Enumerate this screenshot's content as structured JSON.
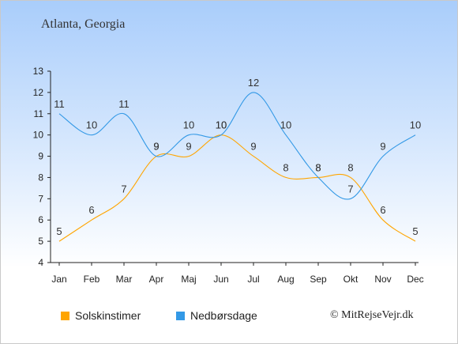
{
  "title": "Atlanta, Georgia",
  "legend": [
    {
      "label": "Solskinstimer",
      "color": "#ffa500"
    },
    {
      "label": "Nedbørsdage",
      "color": "#3399e6"
    }
  ],
  "credit": "© MitRejseVejr.dk",
  "chart_data": {
    "type": "line",
    "title": "Atlanta, Georgia",
    "xlabel": "",
    "ylabel": "",
    "categories": [
      "Jan",
      "Feb",
      "Mar",
      "Apr",
      "Maj",
      "Jun",
      "Jul",
      "Aug",
      "Sep",
      "Okt",
      "Nov",
      "Dec"
    ],
    "ylim": [
      4,
      13
    ],
    "yticks": [
      4,
      5,
      6,
      7,
      8,
      9,
      10,
      11,
      12,
      13
    ],
    "grid": false,
    "legend_position": "bottom",
    "series": [
      {
        "name": "Solskinstimer",
        "color": "#ffa500",
        "values": [
          5,
          6,
          7,
          9,
          9,
          10,
          9,
          8,
          8,
          8,
          6,
          5
        ]
      },
      {
        "name": "Nedbørsdage",
        "color": "#3399e6",
        "values": [
          11,
          10,
          11,
          9,
          10,
          10,
          12,
          10,
          8,
          7,
          9,
          10
        ]
      }
    ]
  }
}
